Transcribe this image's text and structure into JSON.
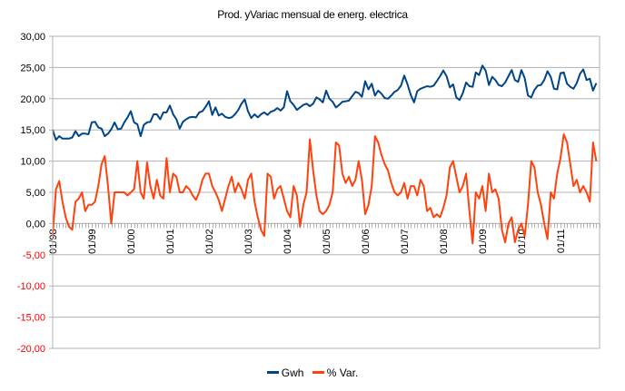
{
  "chart_data": {
    "type": "line",
    "title": "Prod. yVariac mensual de energ. electrica",
    "xlabel": "",
    "ylabel": "",
    "ylim": [
      -20,
      30
    ],
    "yticks": [
      "30,00",
      "25,00",
      "20,00",
      "15,00",
      "10,00",
      "5,00",
      "0,00",
      "-5,00",
      "-10,00",
      "-15,00",
      "-20,00"
    ],
    "ytick_values": [
      30,
      25,
      20,
      15,
      10,
      5,
      0,
      -5,
      -10,
      -15,
      -20
    ],
    "negative_tick_color": "#ff0000",
    "positive_tick_color": "#000000",
    "xticks": [
      "01/98",
      "01/99",
      "01/00",
      "01/01",
      "01/02",
      "01/03",
      "01/04",
      "01/05",
      "01/06",
      "01/07",
      "01/08",
      "01/09",
      "01/10",
      "01/11"
    ],
    "x_start": "1998-01",
    "x_frequency": "monthly",
    "grid": true,
    "legend_position": "bottom",
    "series": [
      {
        "name": "Gwh",
        "color": "#004586",
        "values": [
          15.0,
          13.4,
          14.0,
          13.6,
          13.6,
          13.6,
          13.8,
          14.8,
          14.0,
          14.4,
          14.4,
          14.3,
          16.2,
          16.3,
          15.4,
          15.2,
          14.0,
          14.4,
          15.1,
          16.2,
          15.1,
          15.2,
          16.2,
          17.0,
          18.0,
          16.2,
          15.9,
          14.0,
          15.8,
          16.2,
          16.3,
          17.5,
          17.5,
          16.7,
          17.8,
          17.8,
          18.9,
          17.5,
          16.7,
          15.2,
          16.3,
          16.7,
          17.0,
          17.1,
          17.0,
          17.8,
          18.0,
          18.7,
          19.6,
          17.4,
          18.6,
          17.3,
          17.6,
          17.1,
          16.9,
          17.0,
          17.5,
          18.2,
          19.2,
          19.9,
          18.0,
          16.9,
          17.5,
          17.0,
          17.5,
          17.8,
          17.4,
          17.9,
          18.1,
          18.5,
          18.1,
          18.6,
          21.2,
          19.6,
          19.0,
          18.2,
          18.6,
          19.0,
          19.2,
          18.8,
          19.2,
          20.2,
          19.9,
          19.4,
          21.3,
          20.0,
          19.5,
          18.6,
          19.0,
          19.5,
          19.6,
          19.7,
          20.4,
          21.1,
          20.9,
          20.3,
          22.8,
          21.5,
          22.4,
          20.5,
          21.3,
          20.8,
          20.1,
          20.0,
          20.5,
          21.1,
          21.4,
          22.1,
          23.7,
          22.3,
          20.6,
          19.4,
          21.2,
          21.6,
          21.8,
          22.0,
          21.9,
          22.1,
          22.8,
          23.6,
          24.5,
          23.6,
          21.8,
          22.3,
          20.2,
          19.8,
          20.9,
          22.6,
          22.0,
          21.9,
          24.2,
          23.8,
          25.3,
          24.5,
          22.2,
          23.5,
          23.0,
          22.2,
          22.0,
          22.6,
          23.6,
          24.6,
          23.0,
          22.7,
          24.6,
          23.3,
          20.5,
          20.2,
          21.4,
          22.1,
          22.2,
          23.0,
          24.4,
          23.5,
          21.6,
          21.5,
          24.1,
          24.2,
          22.4,
          21.9,
          21.6,
          22.5,
          24.0,
          24.7,
          23.0,
          23.2,
          21.3,
          22.5
        ]
      },
      {
        "name": "% Var.",
        "color": "#ff420e",
        "values": [
          -2.0,
          5.5,
          6.8,
          3.5,
          1.0,
          -0.5,
          -1.0,
          3.5,
          4.0,
          5.0,
          2.0,
          3.0,
          3.0,
          3.5,
          6.0,
          9.5,
          10.8,
          6.0,
          0.0,
          5.0,
          5.0,
          5.0,
          5.0,
          4.5,
          5.0,
          5.5,
          10.0,
          5.0,
          4.0,
          9.8,
          6.0,
          4.0,
          7.0,
          4.5,
          4.0,
          10.5,
          5.0,
          8.0,
          7.5,
          5.0,
          5.0,
          6.0,
          5.5,
          4.5,
          3.8,
          5.0,
          7.0,
          8.0,
          8.0,
          6.0,
          5.0,
          3.8,
          2.0,
          4.0,
          6.0,
          7.5,
          5.0,
          6.5,
          5.5,
          4.0,
          7.0,
          8.0,
          3.5,
          1.0,
          -1.0,
          -2.0,
          8.0,
          7.5,
          4.0,
          5.5,
          6.0,
          4.0,
          2.0,
          1.0,
          6.0,
          4.5,
          -0.5,
          3.0,
          5.0,
          13.5,
          8.5,
          4.5,
          2.0,
          1.5,
          2.0,
          3.0,
          5.0,
          13.0,
          12.5,
          8.0,
          6.5,
          7.5,
          6.0,
          7.0,
          10.0,
          7.0,
          1.5,
          3.0,
          6.0,
          14.0,
          13.0,
          11.0,
          9.5,
          8.5,
          6.5,
          5.0,
          4.5,
          5.0,
          6.5,
          4.0,
          6.0,
          6.0,
          4.5,
          7.0,
          6.0,
          2.0,
          2.5,
          1.0,
          1.5,
          1.0,
          2.5,
          4.5,
          9.0,
          10.0,
          7.5,
          5.0,
          6.0,
          8.0,
          2.0,
          -3.2,
          5.0,
          4.0,
          6.0,
          2.0,
          8.0,
          5.0,
          5.5,
          4.0,
          -1.0,
          -3.0,
          0.0,
          1.0,
          -3.0,
          -1.0,
          0.0,
          -2.0,
          3.0,
          10.0,
          9.0,
          5.0,
          3.0,
          0.0,
          -2.5,
          5.0,
          4.0,
          8.0,
          10.5,
          14.3,
          13.0,
          9.5,
          6.0,
          7.0,
          5.0,
          6.0,
          5.0,
          3.5,
          13.0,
          10.0
        ]
      }
    ]
  },
  "legend": {
    "items": [
      {
        "label": "Gwh",
        "color": "#004586"
      },
      {
        "label": "% Var.",
        "color": "#ff420e"
      }
    ]
  }
}
